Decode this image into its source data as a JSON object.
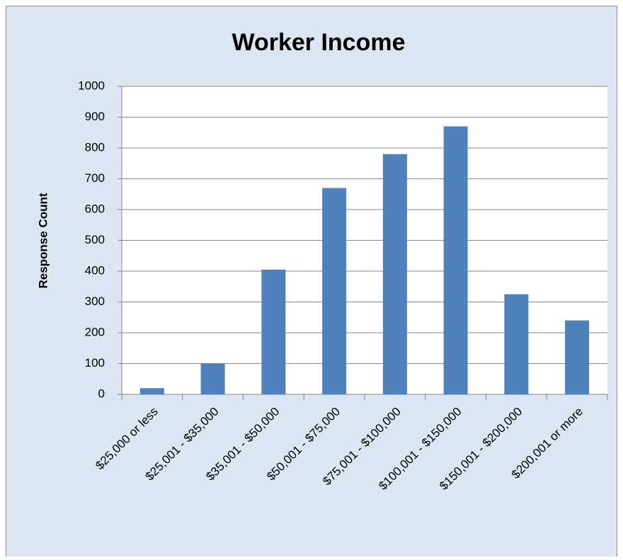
{
  "chart_data": {
    "type": "bar",
    "title": "Worker Income",
    "y_label": "Response Count",
    "categories": [
      "$25,000 or less",
      "$25,001 - $35,000",
      "$35,001 - $50,000",
      "$50,001 - $75,000",
      "$75,001 - $100,000",
      "$100,001 - $150,000",
      "$150,001 - $200,000",
      "$200,001 or more"
    ],
    "values": [
      20,
      100,
      405,
      670,
      780,
      870,
      325,
      240
    ],
    "color": "#4f81bd",
    "ylim": [
      0,
      1000
    ],
    "yticks": [
      0,
      100,
      200,
      300,
      400,
      500,
      600,
      700,
      800,
      900,
      1000
    ],
    "grid": true
  }
}
